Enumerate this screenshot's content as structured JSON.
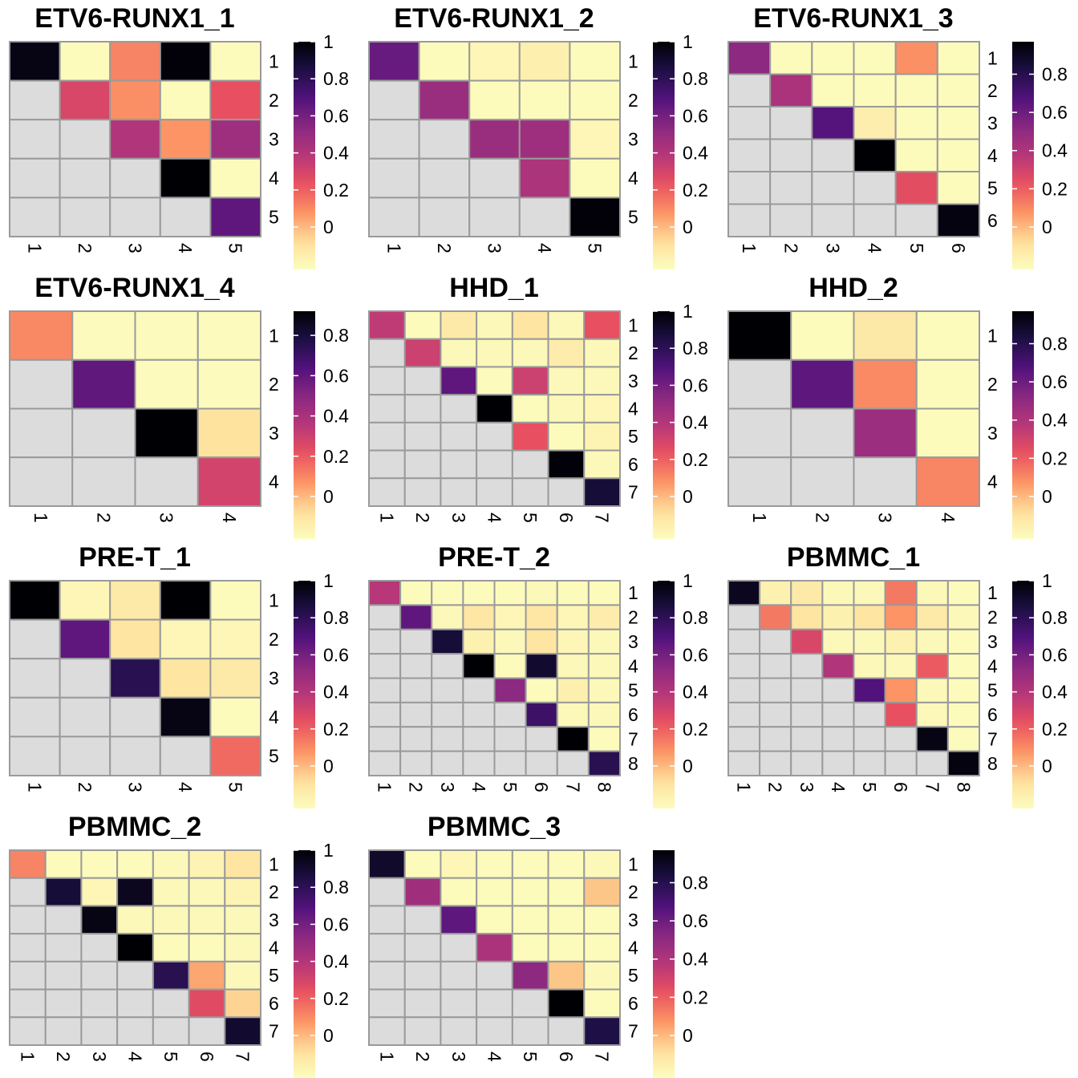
{
  "chart_data": {
    "type": "heatmap",
    "colorscale": "magma (reversed): 0 = light yellow, 1 = black",
    "lower_triangle_color": "#dcdcdc",
    "panels": [
      {
        "title": "ETV6-RUNX1_1",
        "n": 5,
        "labels": [
          "1",
          "2",
          "3",
          "4",
          "5"
        ],
        "colorbar_ticks": [
          "0",
          "0.2",
          "0.4",
          "0.6",
          "0.8",
          "1"
        ],
        "colorbar_range": [
          0,
          1
        ],
        "matrix": [
          [
            0.97,
            0.01,
            0.28,
            0.99,
            0.01
          ],
          [
            null,
            0.42,
            0.26,
            0.01,
            0.38
          ],
          [
            null,
            null,
            0.52,
            0.25,
            0.57
          ],
          [
            null,
            null,
            null,
            1.0,
            0.01
          ],
          [
            null,
            null,
            null,
            null,
            0.72
          ]
        ]
      },
      {
        "title": "ETV6-RUNX1_2",
        "n": 5,
        "labels": [
          "1",
          "2",
          "3",
          "4",
          "5"
        ],
        "colorbar_ticks": [
          "0",
          "0.2",
          "0.4",
          "0.6",
          "0.8",
          "1"
        ],
        "colorbar_range": [
          0,
          1
        ],
        "matrix": [
          [
            0.7,
            0.01,
            0.03,
            0.06,
            0.01
          ],
          [
            null,
            0.58,
            0.01,
            0.01,
            0.01
          ],
          [
            null,
            null,
            0.58,
            0.57,
            0.03
          ],
          [
            null,
            null,
            null,
            0.53,
            0.01
          ],
          [
            null,
            null,
            null,
            null,
            0.99
          ]
        ]
      },
      {
        "title": "ETV6-RUNX1_3",
        "n": 6,
        "labels": [
          "1",
          "2",
          "3",
          "4",
          "5",
          "6"
        ],
        "colorbar_ticks": [
          "0",
          "0.2",
          "0.4",
          "0.6",
          "0.8"
        ],
        "colorbar_range": [
          0,
          0.97
        ],
        "matrix": [
          [
            0.6,
            0.01,
            0.01,
            0.01,
            0.25,
            0.01
          ],
          [
            null,
            0.52,
            0.01,
            0.01,
            0.01,
            0.01
          ],
          [
            null,
            null,
            0.72,
            0.06,
            0.01,
            0.01
          ],
          [
            null,
            null,
            null,
            0.97,
            0.01,
            0.01
          ],
          [
            null,
            null,
            null,
            null,
            0.38,
            0.01
          ],
          [
            null,
            null,
            null,
            null,
            null,
            0.95
          ]
        ]
      },
      {
        "title": "ETV6-RUNX1_4",
        "n": 4,
        "labels": [
          "1",
          "2",
          "3",
          "4"
        ],
        "colorbar_ticks": [
          "0",
          "0.2",
          "0.4",
          "0.6",
          "0.8"
        ],
        "colorbar_range": [
          0,
          0.92
        ],
        "matrix": [
          [
            0.25,
            0.01,
            0.01,
            0.01
          ],
          [
            null,
            0.66,
            0.01,
            0.01
          ],
          [
            null,
            null,
            0.92,
            0.1
          ],
          [
            null,
            null,
            null,
            0.4
          ]
        ]
      },
      {
        "title": "HHD_1",
        "n": 7,
        "labels": [
          "1",
          "2",
          "3",
          "4",
          "5",
          "6",
          "7"
        ],
        "colorbar_ticks": [
          "0",
          "0.2",
          "0.4",
          "0.6",
          "0.8",
          "1"
        ],
        "colorbar_range": [
          0,
          1
        ],
        "matrix": [
          [
            0.48,
            0.01,
            0.08,
            0.02,
            0.1,
            0.02,
            0.38
          ],
          [
            null,
            0.45,
            0.02,
            0.02,
            0.02,
            0.07,
            0.02
          ],
          [
            null,
            null,
            0.72,
            0.01,
            0.45,
            0.02,
            0.02
          ],
          [
            null,
            null,
            null,
            1.0,
            0.01,
            0.02,
            0.03
          ],
          [
            null,
            null,
            null,
            null,
            0.38,
            0.01,
            0.04
          ],
          [
            null,
            null,
            null,
            null,
            null,
            0.99,
            0.02
          ],
          [
            null,
            null,
            null,
            null,
            null,
            null,
            0.9
          ]
        ]
      },
      {
        "title": "HHD_2",
        "n": 4,
        "labels": [
          "1",
          "2",
          "3",
          "4"
        ],
        "colorbar_ticks": [
          "0",
          "0.2",
          "0.4",
          "0.6",
          "0.8"
        ],
        "colorbar_range": [
          0,
          0.97
        ],
        "matrix": [
          [
            0.97,
            0.01,
            0.08,
            0.01
          ],
          [
            null,
            0.7,
            0.26,
            0.01
          ],
          [
            null,
            null,
            0.56,
            0.01
          ],
          [
            null,
            null,
            null,
            0.27
          ]
        ]
      },
      {
        "title": "PRE-T_1",
        "n": 5,
        "labels": [
          "1",
          "2",
          "3",
          "4",
          "5"
        ],
        "colorbar_ticks": [
          "0",
          "0.2",
          "0.4",
          "0.6",
          "0.8",
          "1"
        ],
        "colorbar_range": [
          0,
          1
        ],
        "matrix": [
          [
            1.0,
            0.03,
            0.08,
            1.0,
            0.01
          ],
          [
            null,
            0.72,
            0.1,
            0.03,
            0.03
          ],
          [
            null,
            null,
            0.85,
            0.1,
            0.08
          ],
          [
            null,
            null,
            null,
            0.97,
            0.01
          ],
          [
            null,
            null,
            null,
            null,
            0.33
          ]
        ]
      },
      {
        "title": "PRE-T_2",
        "n": 8,
        "labels": [
          "1",
          "2",
          "3",
          "4",
          "5",
          "6",
          "7",
          "8"
        ],
        "colorbar_ticks": [
          "0",
          "0.2",
          "0.4",
          "0.6",
          "0.8",
          "1"
        ],
        "colorbar_range": [
          0,
          1
        ],
        "matrix": [
          [
            0.5,
            0.01,
            0.01,
            0.01,
            0.01,
            0.02,
            0.01,
            0.01
          ],
          [
            null,
            0.72,
            0.02,
            0.09,
            0.03,
            0.09,
            0.03,
            0.07
          ],
          [
            null,
            null,
            0.9,
            0.05,
            0.02,
            0.1,
            0.03,
            0.02
          ],
          [
            null,
            null,
            null,
            1.0,
            0.01,
            0.92,
            0.02,
            0.02
          ],
          [
            null,
            null,
            null,
            null,
            0.62,
            0.01,
            0.06,
            0.02
          ],
          [
            null,
            null,
            null,
            null,
            null,
            0.8,
            0.02,
            0.02
          ],
          [
            null,
            null,
            null,
            null,
            null,
            null,
            1.0,
            0.01
          ],
          [
            null,
            null,
            null,
            null,
            null,
            null,
            null,
            0.85
          ]
        ]
      },
      {
        "title": "PBMMC_1",
        "n": 8,
        "labels": [
          "1",
          "2",
          "3",
          "4",
          "5",
          "6",
          "7",
          "8"
        ],
        "colorbar_ticks": [
          "0",
          "0.2",
          "0.4",
          "0.6",
          "0.8",
          "1"
        ],
        "colorbar_range": [
          0,
          1
        ],
        "matrix": [
          [
            0.95,
            0.05,
            0.08,
            0.02,
            0.02,
            0.3,
            0.02,
            0.01
          ],
          [
            null,
            0.3,
            0.1,
            0.05,
            0.1,
            0.25,
            0.08,
            0.02
          ],
          [
            null,
            null,
            0.42,
            0.02,
            0.02,
            0.05,
            0.02,
            0.01
          ],
          [
            null,
            null,
            null,
            0.52,
            0.02,
            0.02,
            0.36,
            0.01
          ],
          [
            null,
            null,
            null,
            null,
            0.75,
            0.25,
            0.02,
            0.01
          ],
          [
            null,
            null,
            null,
            null,
            null,
            0.38,
            0.02,
            0.01
          ],
          [
            null,
            null,
            null,
            null,
            null,
            null,
            0.97,
            0.01
          ],
          [
            null,
            null,
            null,
            null,
            null,
            null,
            null,
            0.98
          ]
        ]
      },
      {
        "title": "PBMMC_2",
        "n": 7,
        "labels": [
          "1",
          "2",
          "3",
          "4",
          "5",
          "6",
          "7"
        ],
        "colorbar_ticks": [
          "0",
          "0.2",
          "0.4",
          "0.6",
          "0.8",
          "1"
        ],
        "colorbar_range": [
          0,
          1
        ],
        "matrix": [
          [
            0.28,
            0.01,
            0.01,
            0.01,
            0.02,
            0.04,
            0.1
          ],
          [
            null,
            0.9,
            0.03,
            0.95,
            0.02,
            0.02,
            0.04
          ],
          [
            null,
            null,
            0.97,
            0.02,
            0.02,
            0.02,
            0.02
          ],
          [
            null,
            null,
            null,
            1.0,
            0.01,
            0.01,
            0.02
          ],
          [
            null,
            null,
            null,
            null,
            0.85,
            0.22,
            0.02
          ],
          [
            null,
            null,
            null,
            null,
            null,
            0.4,
            0.14
          ],
          [
            null,
            null,
            null,
            null,
            null,
            null,
            0.92
          ]
        ]
      },
      {
        "title": "PBMMC_3",
        "n": 7,
        "labels": [
          "1",
          "2",
          "3",
          "4",
          "5",
          "6",
          "7"
        ],
        "colorbar_ticks": [
          "0",
          "0.2",
          "0.4",
          "0.6",
          "0.8"
        ],
        "colorbar_range": [
          0,
          0.97
        ],
        "matrix": [
          [
            0.9,
            0.01,
            0.03,
            0.01,
            0.01,
            0.01,
            0.02
          ],
          [
            null,
            0.55,
            0.01,
            0.01,
            0.01,
            0.01,
            0.16
          ],
          [
            null,
            null,
            0.7,
            0.01,
            0.01,
            0.01,
            0.01
          ],
          [
            null,
            null,
            null,
            0.52,
            0.01,
            0.01,
            0.01
          ],
          [
            null,
            null,
            null,
            null,
            0.6,
            0.16,
            0.02
          ],
          [
            null,
            null,
            null,
            null,
            null,
            0.97,
            0.01
          ],
          [
            null,
            null,
            null,
            null,
            null,
            null,
            0.85
          ]
        ]
      }
    ]
  }
}
